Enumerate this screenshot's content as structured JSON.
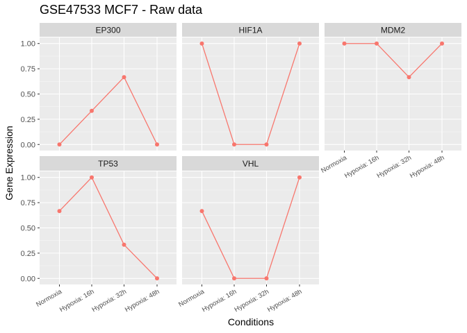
{
  "chart_data": {
    "type": "line",
    "title": "GSE47533 MCF7 - Raw data",
    "xlabel": "Conditions",
    "ylabel": "Gene Expression",
    "categories": [
      "Normoxia",
      "Hypoxia: 16h",
      "Hypoxia: 32h",
      "Hypoxia: 48h"
    ],
    "ylim": [
      -0.06,
      1.06
    ],
    "yticks": [
      0.0,
      0.25,
      0.5,
      0.75,
      1.0
    ],
    "ytick_labels": [
      "0.00",
      "0.25",
      "0.50",
      "0.75",
      "1.00"
    ],
    "grid": true,
    "color": "#F8766D",
    "panels": [
      {
        "name": "EP300",
        "values": [
          0.0,
          0.333,
          0.667,
          0.0
        ]
      },
      {
        "name": "HIF1A",
        "values": [
          1.0,
          0.0,
          0.0,
          1.0
        ]
      },
      {
        "name": "MDM2",
        "values": [
          1.0,
          1.0,
          0.667,
          1.0
        ]
      },
      {
        "name": "TP53",
        "values": [
          0.667,
          1.0,
          0.333,
          0.0
        ]
      },
      {
        "name": "VHL",
        "values": [
          0.667,
          0.0,
          0.0,
          1.0
        ]
      }
    ]
  }
}
